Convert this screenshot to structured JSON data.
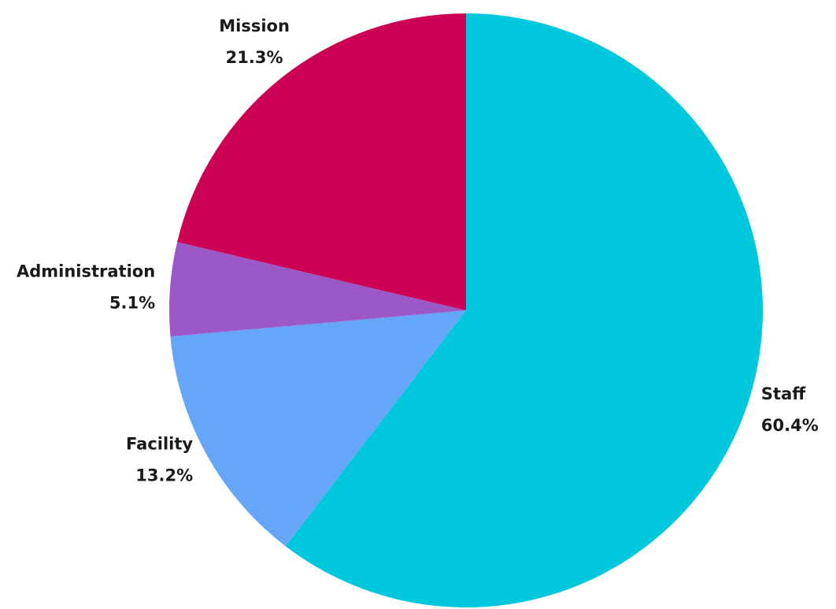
{
  "chart_data": {
    "type": "pie",
    "categories": [
      "Staff",
      "Facility",
      "Administration",
      "Mission"
    ],
    "values": [
      60.4,
      13.2,
      5.1,
      21.3
    ],
    "value_labels": [
      "60.4%",
      "13.2%",
      "5.1%",
      "21.3%"
    ],
    "colors": [
      "#00c8dc",
      "#66a6f8",
      "#9b59c8",
      "#cc0055"
    ]
  }
}
